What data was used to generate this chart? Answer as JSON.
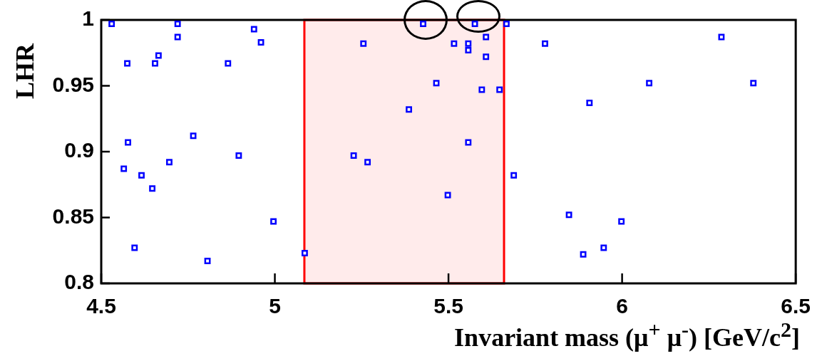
{
  "chart_data": {
    "type": "scatter",
    "xlabel": "Invariant mass (μ$^{+}$ μ$^{-}$) [GeV/c$^{2}$]",
    "ylabel": "LHR",
    "xlim": [
      4.5,
      6.5
    ],
    "xticks": [
      4.5,
      5,
      5.5,
      6,
      6.5
    ],
    "ylim": [
      0.8,
      1
    ],
    "yticks": [
      0.8,
      0.85,
      0.9,
      0.95,
      1
    ],
    "grid": false,
    "legend": false,
    "marker": "square",
    "bands": [
      {
        "axis": "x",
        "from": 5.085,
        "to": 5.66,
        "color": "#ff0000"
      }
    ],
    "series": [
      {
        "color": "#0000ff",
        "x": [
          4.53,
          4.72,
          4.72,
          4.94,
          4.96,
          4.665,
          4.655,
          4.575,
          4.865,
          4.577,
          4.765,
          4.896,
          4.696,
          4.565,
          4.616,
          4.647,
          4.996,
          4.596,
          4.806,
          5.086,
          5.427,
          5.576,
          5.667,
          5.255,
          5.516,
          5.557,
          5.557,
          5.608,
          5.608,
          5.465,
          5.596,
          5.647,
          5.386,
          5.557,
          5.227,
          5.267,
          5.498,
          5.688,
          5.778,
          5.906,
          6.078,
          6.378,
          6.286,
          5.847,
          5.888,
          5.947,
          5.998
        ],
        "values": [
          0.997,
          0.997,
          0.987,
          0.993,
          0.983,
          0.973,
          0.967,
          0.967,
          0.967,
          0.907,
          0.912,
          0.897,
          0.892,
          0.887,
          0.882,
          0.872,
          0.847,
          0.827,
          0.817,
          0.823,
          0.997,
          0.997,
          0.997,
          0.982,
          0.982,
          0.982,
          0.977,
          0.987,
          0.972,
          0.952,
          0.947,
          0.947,
          0.932,
          0.907,
          0.897,
          0.892,
          0.867,
          0.882,
          0.982,
          0.937,
          0.952,
          0.952,
          0.987,
          0.852,
          0.822,
          0.827,
          0.847
        ]
      }
    ]
  }
}
